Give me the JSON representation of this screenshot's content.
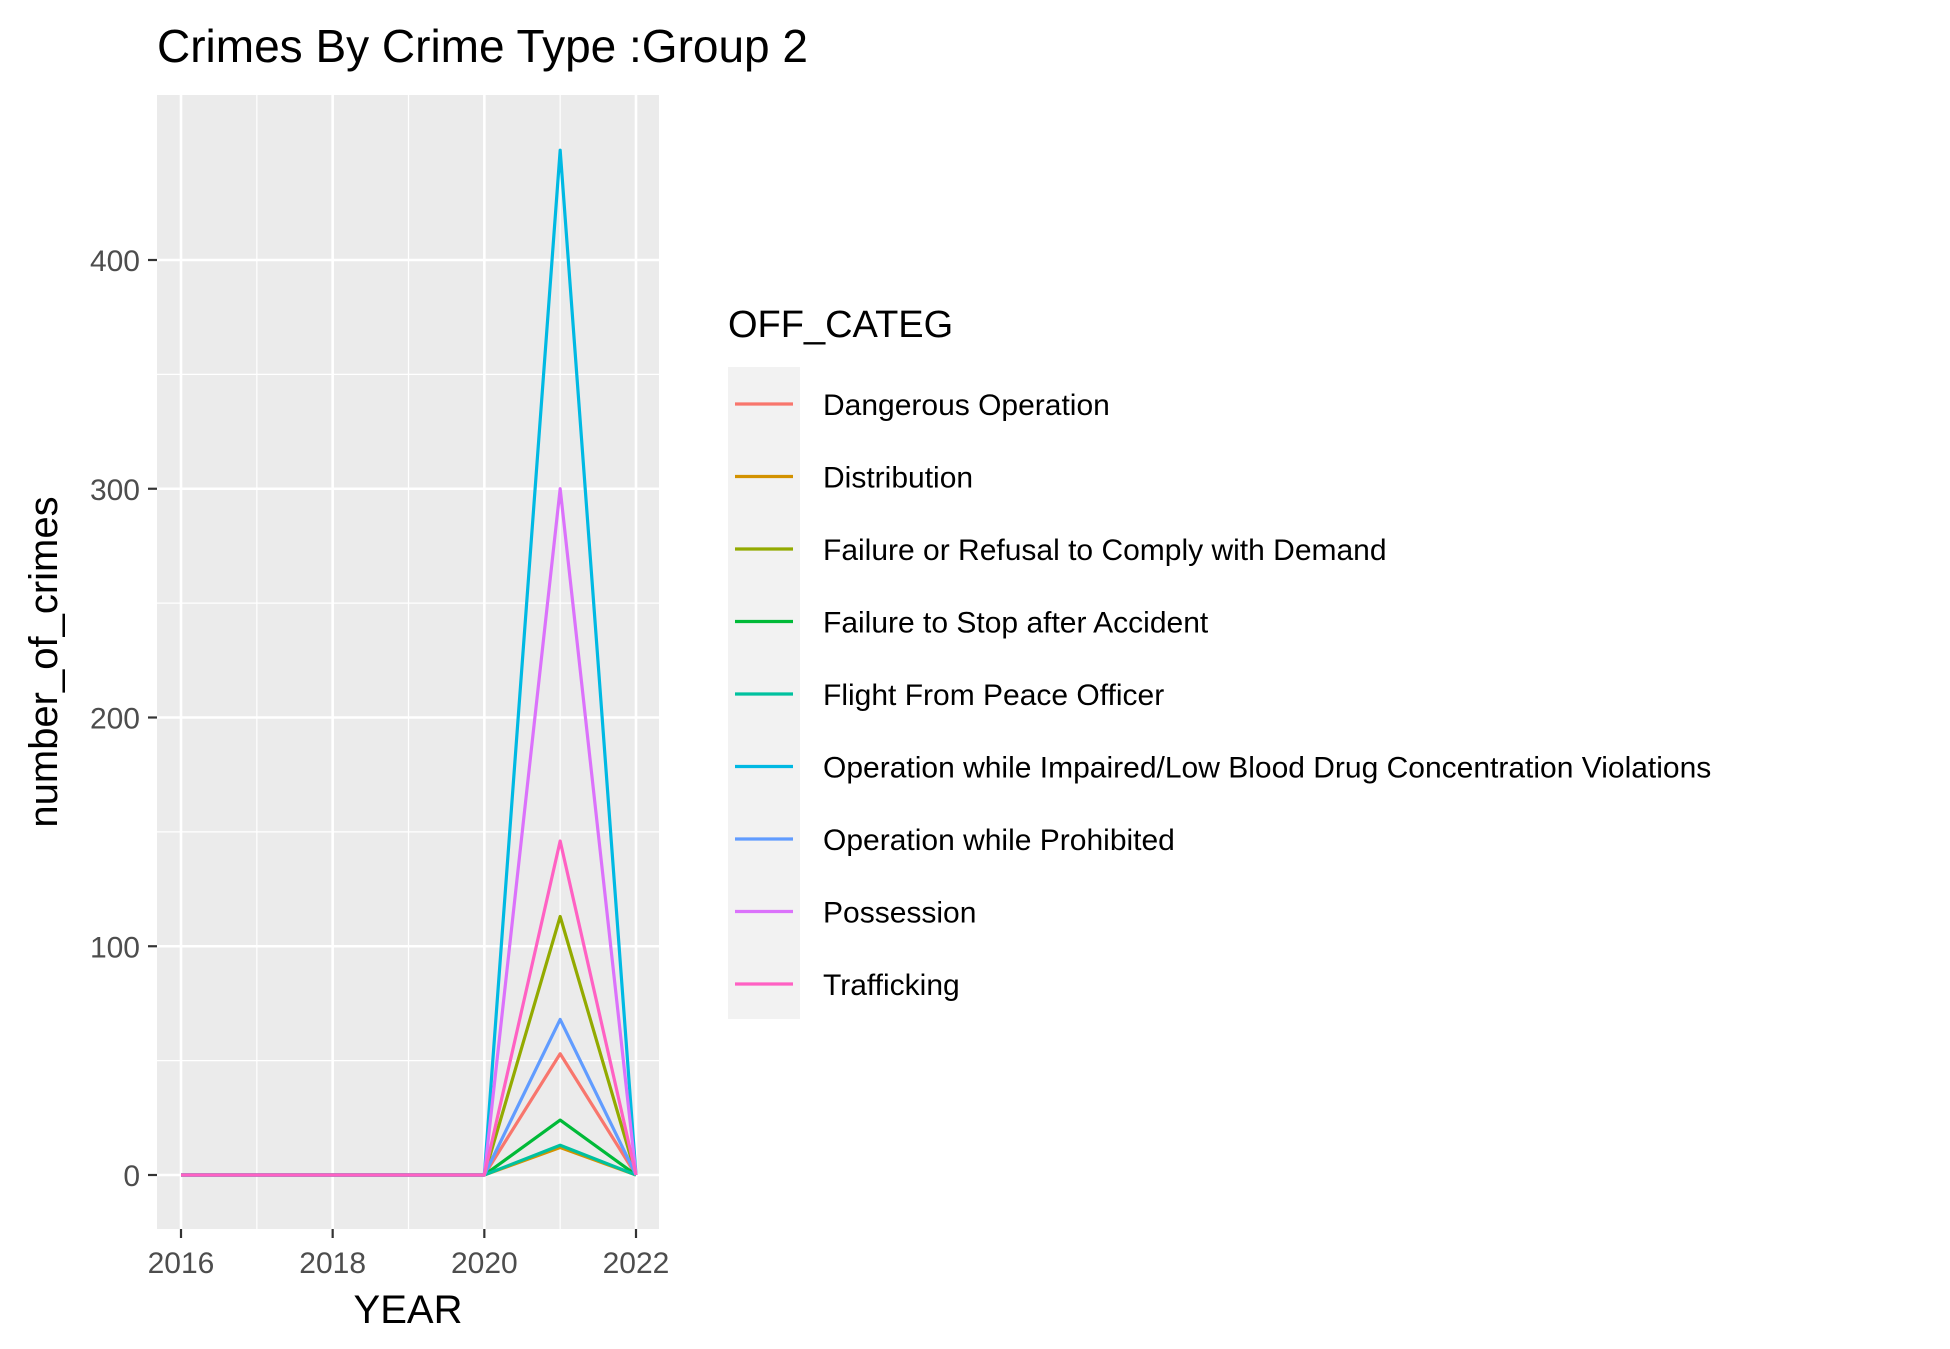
{
  "chart_data": {
    "type": "line",
    "title": "Crimes By Crime Type :Group 2",
    "xlabel": "YEAR",
    "ylabel": "number_of_crimes",
    "x": [
      2016,
      2017,
      2018,
      2019,
      2020,
      2021,
      2022
    ],
    "xlim": [
      2016,
      2022
    ],
    "ylim": [
      0,
      450
    ],
    "x_ticks": [
      "2016",
      "2018",
      "2020",
      "2022"
    ],
    "y_ticks": [
      "0",
      "100",
      "200",
      "300",
      "400"
    ],
    "grid": true,
    "legend": {
      "title": "OFF_CATEG",
      "position": "right"
    },
    "series": [
      {
        "name": "Dangerous Operation",
        "color": "#F8766D",
        "values": [
          0,
          0,
          0,
          0,
          0,
          53,
          0
        ]
      },
      {
        "name": "Distribution",
        "color": "#D39200",
        "values": [
          0,
          0,
          0,
          0,
          0,
          12,
          0
        ]
      },
      {
        "name": "Failure or Refusal to Comply with Demand",
        "color": "#93AA00",
        "values": [
          0,
          0,
          0,
          0,
          0,
          113,
          0
        ]
      },
      {
        "name": "Failure to Stop after Accident",
        "color": "#00BA38",
        "values": [
          0,
          0,
          0,
          0,
          0,
          24,
          0
        ]
      },
      {
        "name": "Flight From Peace Officer",
        "color": "#00C19F",
        "values": [
          0,
          0,
          0,
          0,
          0,
          13,
          0
        ]
      },
      {
        "name": "Operation while Impaired/Low Blood Drug Concentration Violations",
        "color": "#00B9E3",
        "values": [
          0,
          0,
          0,
          0,
          0,
          448,
          0
        ]
      },
      {
        "name": "Operation while Prohibited",
        "color": "#619CFF",
        "values": [
          0,
          0,
          0,
          0,
          0,
          68,
          0
        ]
      },
      {
        "name": "Possession",
        "color": "#DB72FB",
        "values": [
          0,
          0,
          0,
          0,
          0,
          300,
          0
        ]
      },
      {
        "name": "Trafficking",
        "color": "#FF61C3",
        "values": [
          0,
          0,
          0,
          0,
          0,
          146,
          0
        ]
      }
    ]
  }
}
